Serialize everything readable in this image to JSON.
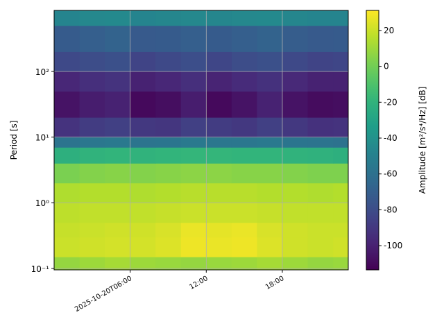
{
  "chart_data": {
    "type": "heatmap",
    "ylabel": "Period [s]",
    "colorbar_label": "Amplitude [m²/s⁴/Hz] [dB]",
    "colormap": "viridis",
    "xbins": [
      0,
      2,
      4,
      6,
      8,
      10,
      12,
      14,
      16,
      18,
      20,
      22,
      23.2
    ],
    "ybins": [
      0.095,
      0.15,
      0.3,
      0.5,
      1,
      2,
      4,
      7,
      10,
      20,
      50,
      100,
      200,
      500,
      850
    ],
    "z": [
      [
        8,
        10,
        12,
        10,
        9,
        8,
        9,
        10,
        12,
        10,
        8,
        9
      ],
      [
        20,
        21,
        22,
        22,
        24,
        28,
        27,
        28,
        24,
        21,
        20,
        21
      ],
      [
        19,
        20,
        21,
        21,
        23,
        27,
        26,
        27,
        23,
        21,
        20,
        20
      ],
      [
        17,
        18,
        18,
        18,
        19,
        20,
        20,
        20,
        19,
        18,
        18,
        18
      ],
      [
        14,
        15,
        15,
        14,
        15,
        16,
        16,
        16,
        15,
        15,
        14,
        15
      ],
      [
        2,
        4,
        5,
        4,
        5,
        6,
        6,
        5,
        5,
        4,
        3,
        3
      ],
      [
        -22,
        -20,
        -19,
        -20,
        -19,
        -18,
        -18,
        -19,
        -19,
        -20,
        -21,
        -22
      ],
      [
        -58,
        -56,
        -55,
        -58,
        -57,
        -55,
        -56,
        -56,
        -55,
        -57,
        -58,
        -59
      ],
      [
        -92,
        -88,
        -86,
        -90,
        -91,
        -86,
        -88,
        -90,
        -86,
        -90,
        -93,
        -92
      ],
      [
        -106,
        -102,
        -100,
        -110,
        -108,
        -102,
        -110,
        -106,
        -100,
        -106,
        -109,
        -108
      ],
      [
        -98,
        -94,
        -92,
        -100,
        -98,
        -94,
        -99,
        -96,
        -93,
        -97,
        -100,
        -100
      ],
      [
        -82,
        -80,
        -78,
        -84,
        -82,
        -79,
        -83,
        -80,
        -78,
        -82,
        -84,
        -83
      ],
      [
        -72,
        -70,
        -68,
        -73,
        -72,
        -70,
        -72,
        -70,
        -68,
        -71,
        -73,
        -72
      ],
      [
        -48,
        -46,
        -45,
        -48,
        -47,
        -46,
        -47,
        -46,
        -45,
        -47,
        -48,
        -48
      ]
    ],
    "xlim": [
      0,
      23.2
    ],
    "xticks": [
      {
        "value": 6,
        "label": "2025-10-20T06:00"
      },
      {
        "value": 12,
        "label": "12:00"
      },
      {
        "value": 18,
        "label": "18:00"
      }
    ],
    "ylim": [
      0.095,
      850
    ],
    "yscale": "log",
    "yticks": [
      {
        "value": 0.1,
        "label": "10⁻¹"
      },
      {
        "value": 1,
        "label": "10⁰"
      },
      {
        "value": 10,
        "label": "10¹"
      },
      {
        "value": 100,
        "label": "10²"
      }
    ],
    "clim": [
      -113.5,
      31.2
    ],
    "cticks": [
      20,
      0,
      -20,
      -40,
      -60,
      -80,
      -100
    ],
    "grid": true
  }
}
